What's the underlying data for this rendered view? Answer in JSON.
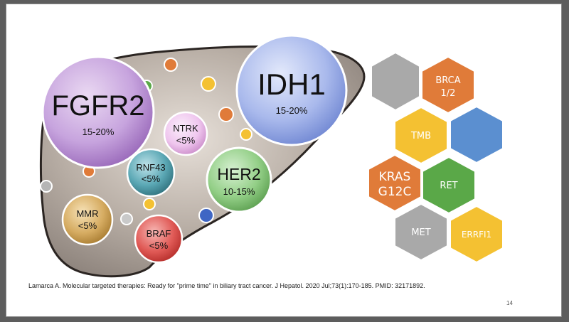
{
  "bubbles": {
    "fgfr2": {
      "name": "FGFR2",
      "pct": "15-20%"
    },
    "idh1": {
      "name": "IDH1",
      "pct": "15-20%"
    },
    "her2": {
      "name": "HER2",
      "pct": "10-15%"
    },
    "ntrk": {
      "name": "NTRK",
      "pct": "<5%"
    },
    "rnf43": {
      "name": "RNF43",
      "pct": "<5%"
    },
    "mmr": {
      "name": "MMR",
      "pct": "<5%"
    },
    "braf": {
      "name": "BRAF",
      "pct": "<5%"
    }
  },
  "hexagons": {
    "brca": {
      "line1": "BRCA",
      "line2": "1/2"
    },
    "tmb": {
      "label": "TMB"
    },
    "kras": {
      "line1": "KRAS",
      "line2": "G12C"
    },
    "ret": {
      "label": "RET"
    },
    "met": {
      "label": "MET"
    },
    "errfi1": {
      "label": "ERRFI1"
    }
  },
  "colors": {
    "orange": "#e07b39",
    "yellow": "#f4c132",
    "blue": "#5b8fd0",
    "green": "#5aa848",
    "gray": "#a9a9a9"
  },
  "citation": "Lamarca A. Molecular targeted therapies: Ready for \"prime time\" in biliary tract cancer. J Hepatol. 2020 Jul;73(1):170-185. PMID: 32171892.",
  "page_number": "14"
}
